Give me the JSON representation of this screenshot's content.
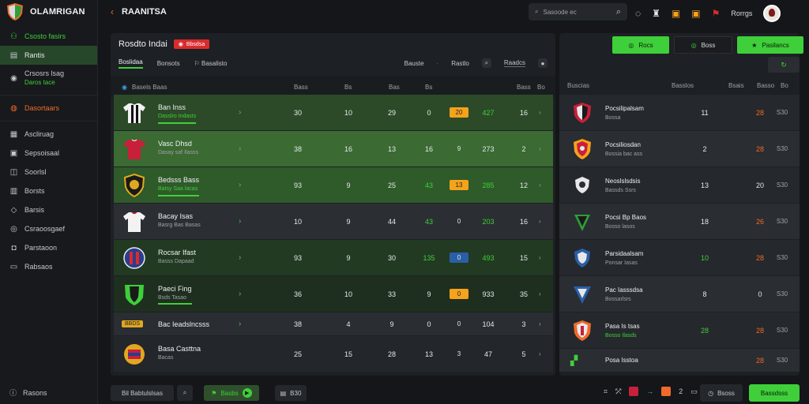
{
  "app": {
    "brand": "OLAMRIGAN",
    "title": "RAANITSA"
  },
  "search": {
    "placeholder": "Sasoode ec"
  },
  "user": {
    "name": "Rorrgs"
  },
  "sidebar": {
    "items": [
      {
        "label": "Csosto fasirs",
        "icon": "users-icon"
      },
      {
        "label": "Rantis",
        "icon": "clipboard-icon"
      },
      {
        "label": "Crsosrs lsag",
        "sub": "Daros tace",
        "icon": "ball-icon"
      },
      {
        "label": "Dasortaars",
        "icon": "fire-icon"
      },
      {
        "label": "Ascliruag",
        "icon": "calendar-icon"
      },
      {
        "label": "Sepsoisaal",
        "icon": "briefcase-icon"
      },
      {
        "label": "Soorlsl",
        "icon": "bag-icon"
      },
      {
        "label": "Borsts",
        "icon": "grid-icon"
      },
      {
        "label": "Barsis",
        "icon": "tag-icon"
      },
      {
        "label": "Csraoosgaef",
        "icon": "globe-icon"
      },
      {
        "label": "Parstaoon",
        "icon": "chat-icon"
      },
      {
        "label": "Rabsaos",
        "icon": "monitor-icon"
      }
    ],
    "footer": "Rasons"
  },
  "main": {
    "title": "Rosdto Indai",
    "live_badge": "Bbsdsa",
    "tabs": [
      "Boslidaa",
      "Bonsots",
      "Basalisto"
    ],
    "tabs_right": [
      "Bauste",
      "Rastlo",
      "Raadcs"
    ],
    "columns": [
      "Basels Baas",
      "Bass",
      "Bs",
      "Bas",
      "Bs",
      "Bass",
      "Bo"
    ],
    "rows": [
      {
        "name": "Ban Inss",
        "sub": "Dasslro Indasts",
        "p": "30",
        "w": "10",
        "d": "29",
        "l": "0",
        "pos": "20",
        "gd": "427",
        "pts": "16"
      },
      {
        "name": "Vasc Dhsd",
        "sub": "Dasay saf Ilasss",
        "p": "38",
        "w": "16",
        "d": "13",
        "l": "16",
        "pos": "9",
        "gd": "273",
        "pts": "2"
      },
      {
        "name": "Bedsss Bass",
        "sub": "Batsy Saa lacas",
        "p": "93",
        "w": "9",
        "d": "25",
        "l": "43",
        "pos": "13",
        "gd": "285",
        "pts": "12"
      },
      {
        "name": "Bacay Isas",
        "sub": "Basrg Bas Basas",
        "p": "10",
        "w": "9",
        "d": "44",
        "l": "43",
        "pos": "0",
        "gd": "203",
        "pts": "16"
      },
      {
        "name": "Rocsar Ifast",
        "sub": "Basss Dapaad",
        "p": "93",
        "w": "9",
        "d": "30",
        "l": "135",
        "pos": "0",
        "gd": "493",
        "pts": "15"
      },
      {
        "name": "Paeci Fing",
        "sub": "Bsds Tasao",
        "p": "36",
        "w": "10",
        "d": "33",
        "l": "9",
        "pos": "0",
        "gd": "933",
        "pts": "35"
      },
      {
        "name": "Bac Ieadslncsss",
        "sub": "",
        "tag": "BBDS",
        "p": "38",
        "w": "4",
        "d": "9",
        "l": "0",
        "pos": "0",
        "gd": "104",
        "pts": "3"
      },
      {
        "name": "Basa Casttna",
        "sub": "Bacas",
        "p": "25",
        "w": "15",
        "d": "28",
        "l": "13",
        "pos": "3",
        "gd": "47",
        "pts": "5"
      }
    ]
  },
  "right": {
    "buttons": [
      "Rocs",
      "Boss",
      "Pasilancs"
    ],
    "columns": [
      "Buscias",
      "Basslos",
      "Bsais",
      "Basso",
      "Bo"
    ],
    "rows": [
      {
        "name": "Pocsilipalsam",
        "sub": "Bossa",
        "a": "11",
        "b": "28",
        "c": "S30"
      },
      {
        "name": "Pocsiliosdan",
        "sub": "Bossia bac ass",
        "a": "2",
        "b": "28",
        "c": "S30"
      },
      {
        "name": "Neoslslsdsis",
        "sub": "Bassds Ssrs",
        "a": "13",
        "b": "20",
        "c": "S30"
      },
      {
        "name": "Pocsi Bp Baos",
        "sub": "Bosso lasos",
        "a": "18",
        "b": "26",
        "c": "S30"
      },
      {
        "name": "Parsidaalsam",
        "sub": "Ponsar Iasas",
        "a": "10",
        "b": "28",
        "c": "S30"
      },
      {
        "name": "Pac Iasssdsa",
        "sub": "Bossarlsrs",
        "a": "8",
        "b": "0",
        "c": "S30"
      },
      {
        "name": "Pasa Is tsas",
        "sub": "Bosso Ilasds",
        "a": "28",
        "b": "28",
        "c": "S30"
      },
      {
        "name": "Posa Isstoa",
        "sub": "",
        "a": "",
        "b": "28",
        "c": "S30"
      }
    ]
  },
  "bottom": {
    "chip1": "Bil Babtulslsas",
    "chip2": "Basbs",
    "chip3": "B30",
    "num": "2",
    "btn1": "Bsoss",
    "btn2": "Bassdsss"
  }
}
